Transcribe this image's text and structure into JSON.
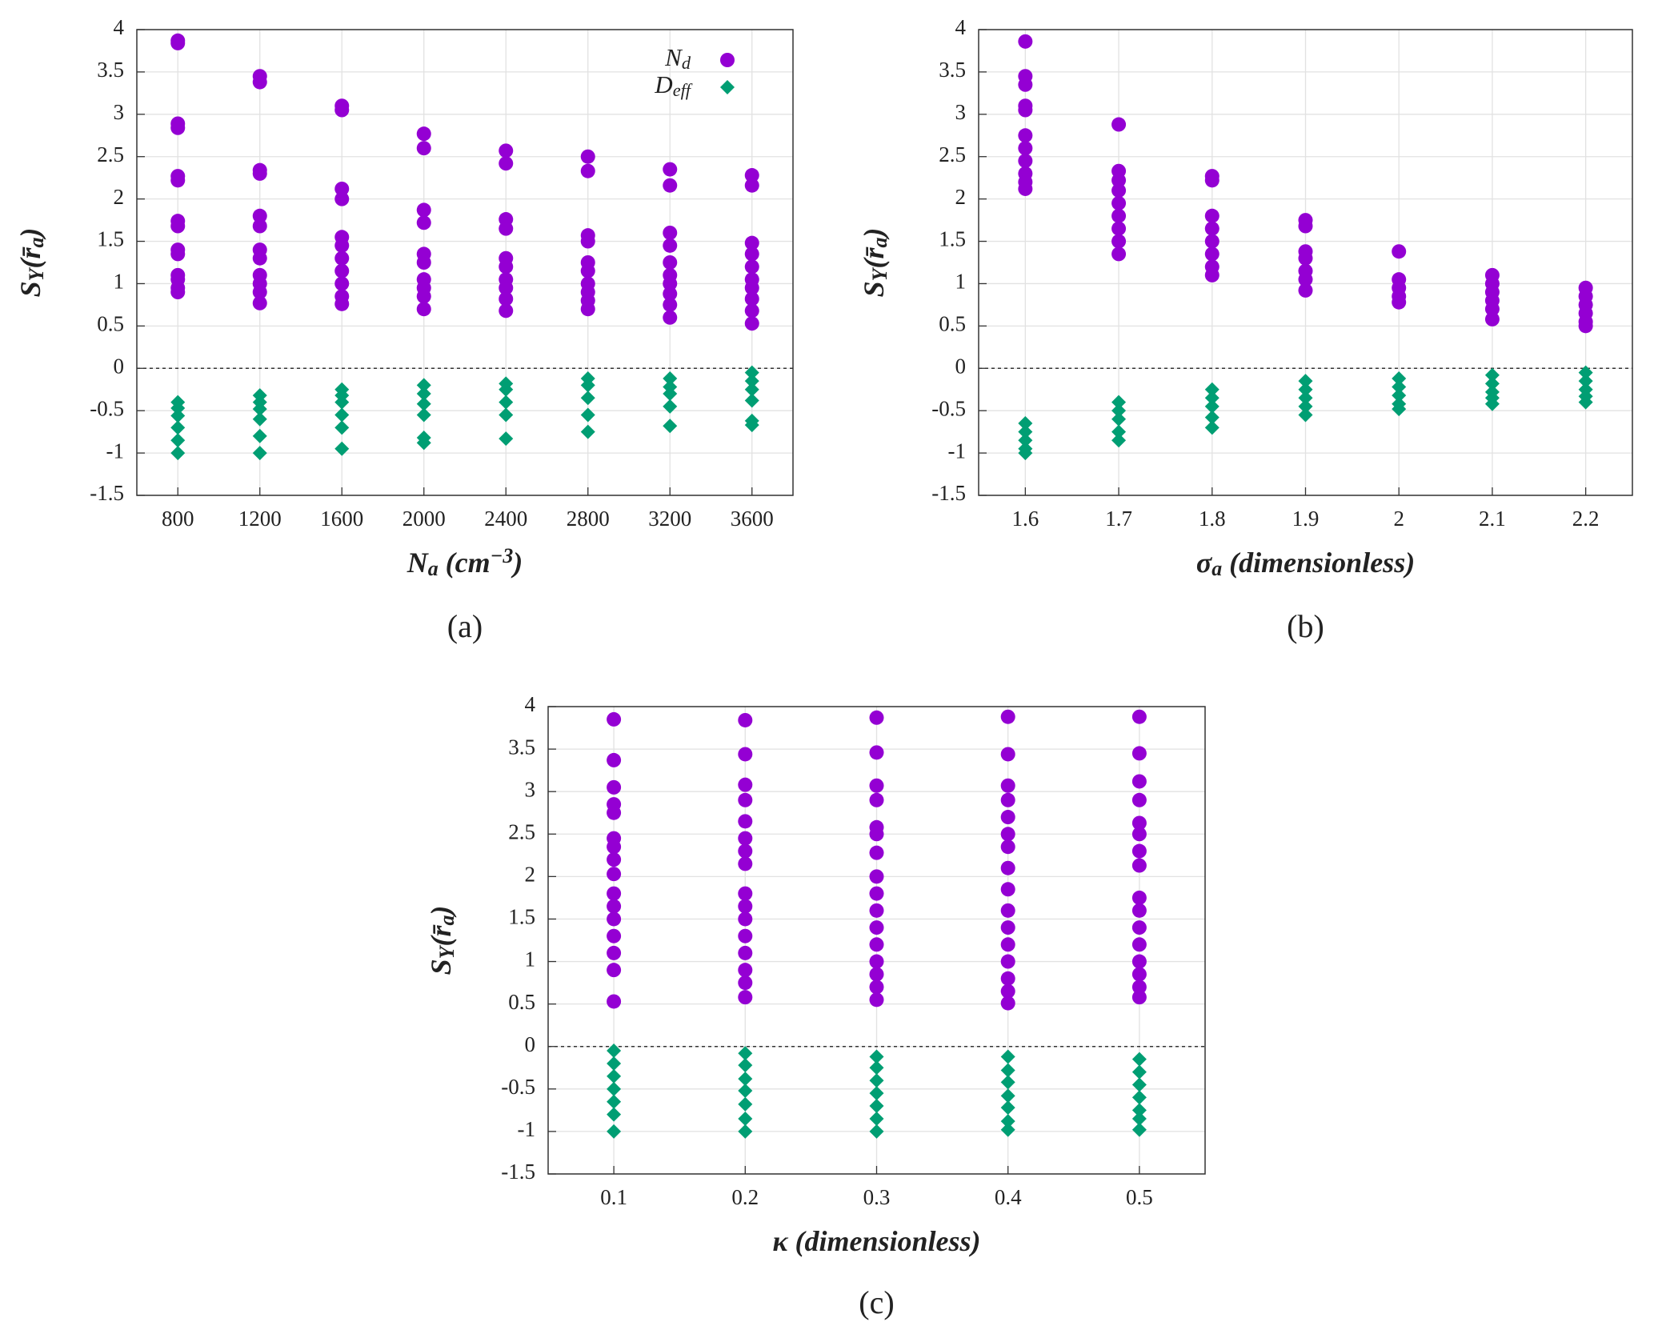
{
  "chart_data": [
    {
      "type": "scatter",
      "caption": "(a)",
      "x_label": [
        {
          "text": "N"
        },
        {
          "text": "a",
          "sub": true
        },
        {
          "text": " (cm"
        },
        {
          "text": "−3",
          "sup": true
        },
        {
          "text": ")"
        }
      ],
      "y_label": [
        {
          "text": "S"
        },
        {
          "text": "Y",
          "sub": true
        },
        {
          "text": "(r̄"
        },
        {
          "text": "a",
          "sub": true
        },
        {
          "text": ")"
        }
      ],
      "xlim": [
        600,
        3800
      ],
      "xticks": [
        800,
        1200,
        1600,
        2000,
        2400,
        2800,
        3200,
        3600
      ],
      "ylim": [
        -1.5,
        4
      ],
      "yticks": [
        -1.5,
        -1,
        -0.5,
        0,
        0.5,
        1,
        1.5,
        2,
        2.5,
        3,
        3.5,
        4
      ],
      "grid": true,
      "hline": 0,
      "legend": "top-right",
      "series": [
        {
          "name": [
            {
              "text": "N"
            },
            {
              "text": "d",
              "sub": true
            }
          ],
          "marker": "circle",
          "color": "#9400d3",
          "x": [
            800,
            800,
            800,
            800,
            800,
            800,
            800,
            800,
            800,
            800,
            800,
            800,
            800,
            800,
            1200,
            1200,
            1200,
            1200,
            1200,
            1200,
            1200,
            1200,
            1200,
            1200,
            1200,
            1200,
            1600,
            1600,
            1600,
            1600,
            1600,
            1600,
            1600,
            1600,
            1600,
            1600,
            1600,
            2000,
            2000,
            2000,
            2000,
            2000,
            2000,
            2000,
            2000,
            2000,
            2000,
            2400,
            2400,
            2400,
            2400,
            2400,
            2400,
            2400,
            2400,
            2400,
            2400,
            2800,
            2800,
            2800,
            2800,
            2800,
            2800,
            2800,
            2800,
            2800,
            2800,
            3200,
            3200,
            3200,
            3200,
            3200,
            3200,
            3200,
            3200,
            3200,
            3200,
            3600,
            3600,
            3600,
            3600,
            3600,
            3600,
            3600,
            3600,
            3600,
            3600
          ],
          "values": [
            3.87,
            3.84,
            2.89,
            2.84,
            2.27,
            2.22,
            1.74,
            1.68,
            1.4,
            1.35,
            1.1,
            1.05,
            0.95,
            0.9,
            3.45,
            3.38,
            2.34,
            2.3,
            1.8,
            1.68,
            1.4,
            1.3,
            1.1,
            1.0,
            0.9,
            0.77,
            3.1,
            3.05,
            2.12,
            2.0,
            1.55,
            1.45,
            1.3,
            1.15,
            1.0,
            0.85,
            0.76,
            2.77,
            2.6,
            1.87,
            1.72,
            1.35,
            1.25,
            1.05,
            0.95,
            0.85,
            0.7,
            2.57,
            2.42,
            1.76,
            1.65,
            1.3,
            1.2,
            1.05,
            0.95,
            0.82,
            0.68,
            2.5,
            2.33,
            1.57,
            1.5,
            1.25,
            1.15,
            1.0,
            0.9,
            0.8,
            0.7,
            2.35,
            2.16,
            1.6,
            1.45,
            1.25,
            1.1,
            1.0,
            0.88,
            0.75,
            0.6,
            2.28,
            2.16,
            1.48,
            1.35,
            1.2,
            1.05,
            0.95,
            0.82,
            0.68,
            0.53
          ]
        },
        {
          "name": [
            {
              "text": "D"
            },
            {
              "text": "eff",
              "sub": true
            }
          ],
          "marker": "diamond",
          "color": "#009e73",
          "x": [
            800,
            800,
            800,
            800,
            800,
            800,
            1200,
            1200,
            1200,
            1200,
            1200,
            1200,
            1600,
            1600,
            1600,
            1600,
            1600,
            1600,
            2000,
            2000,
            2000,
            2000,
            2000,
            2000,
            2400,
            2400,
            2400,
            2400,
            2400,
            2800,
            2800,
            2800,
            2800,
            2800,
            3200,
            3200,
            3200,
            3200,
            3200,
            3600,
            3600,
            3600,
            3600,
            3600,
            3600
          ],
          "values": [
            -0.4,
            -0.47,
            -0.56,
            -0.7,
            -0.85,
            -1.0,
            -0.32,
            -0.4,
            -0.48,
            -0.6,
            -0.8,
            -1.0,
            -0.25,
            -0.32,
            -0.4,
            -0.55,
            -0.7,
            -0.95,
            -0.2,
            -0.3,
            -0.42,
            -0.55,
            -0.82,
            -0.88,
            -0.18,
            -0.25,
            -0.4,
            -0.55,
            -0.83,
            -0.12,
            -0.2,
            -0.35,
            -0.55,
            -0.75,
            -0.12,
            -0.22,
            -0.3,
            -0.45,
            -0.68,
            -0.05,
            -0.15,
            -0.25,
            -0.38,
            -0.62,
            -0.67
          ]
        }
      ]
    },
    {
      "type": "scatter",
      "caption": "(b)",
      "x_label": [
        {
          "text": "σ"
        },
        {
          "text": "a",
          "sub": true
        },
        {
          "text": " (dimensionless)"
        }
      ],
      "y_label": [
        {
          "text": "S"
        },
        {
          "text": "Y",
          "sub": true
        },
        {
          "text": "(r̄"
        },
        {
          "text": "a",
          "sub": true
        },
        {
          "text": ")"
        }
      ],
      "xlim": [
        1.55,
        2.25
      ],
      "xticks": [
        1.6,
        1.7,
        1.8,
        1.9,
        2,
        2.1,
        2.2
      ],
      "ylim": [
        -1.5,
        4
      ],
      "yticks": [
        -1.5,
        -1,
        -0.5,
        0,
        0.5,
        1,
        1.5,
        2,
        2.5,
        3,
        3.5,
        4
      ],
      "grid": true,
      "hline": 0,
      "series": [
        {
          "marker": "circle",
          "color": "#9400d3",
          "x": [
            1.6,
            1.6,
            1.6,
            1.6,
            1.6,
            1.6,
            1.6,
            1.6,
            1.6,
            1.6,
            1.6,
            1.7,
            1.7,
            1.7,
            1.7,
            1.7,
            1.7,
            1.7,
            1.7,
            1.7,
            1.8,
            1.8,
            1.8,
            1.8,
            1.8,
            1.8,
            1.8,
            1.8,
            1.9,
            1.9,
            1.9,
            1.9,
            1.9,
            1.9,
            1.9,
            2,
            2,
            2,
            2,
            2,
            2.1,
            2.1,
            2.1,
            2.1,
            2.1,
            2.1,
            2.2,
            2.2,
            2.2,
            2.2,
            2.2,
            2.2
          ],
          "values": [
            3.86,
            3.45,
            3.35,
            3.1,
            3.05,
            2.75,
            2.6,
            2.45,
            2.3,
            2.2,
            2.12,
            2.88,
            2.33,
            2.22,
            2.1,
            1.95,
            1.8,
            1.65,
            1.5,
            1.35,
            2.27,
            2.22,
            1.8,
            1.65,
            1.5,
            1.35,
            1.2,
            1.1,
            1.75,
            1.68,
            1.38,
            1.3,
            1.15,
            1.05,
            0.92,
            1.38,
            1.05,
            0.95,
            0.85,
            0.78,
            1.1,
            1.0,
            0.9,
            0.8,
            0.7,
            0.58,
            0.95,
            0.85,
            0.75,
            0.65,
            0.55,
            0.5
          ]
        },
        {
          "marker": "diamond",
          "color": "#009e73",
          "x": [
            1.6,
            1.6,
            1.6,
            1.6,
            1.6,
            1.7,
            1.7,
            1.7,
            1.7,
            1.7,
            1.8,
            1.8,
            1.8,
            1.8,
            1.8,
            1.9,
            1.9,
            1.9,
            1.9,
            1.9,
            2,
            2,
            2,
            2,
            2,
            2.1,
            2.1,
            2.1,
            2.1,
            2.1,
            2.2,
            2.2,
            2.2,
            2.2,
            2.2
          ],
          "values": [
            -0.65,
            -0.75,
            -0.85,
            -0.95,
            -1.0,
            -0.4,
            -0.5,
            -0.6,
            -0.75,
            -0.85,
            -0.25,
            -0.35,
            -0.45,
            -0.58,
            -0.7,
            -0.15,
            -0.25,
            -0.35,
            -0.45,
            -0.55,
            -0.12,
            -0.22,
            -0.32,
            -0.42,
            -0.48,
            -0.08,
            -0.18,
            -0.28,
            -0.35,
            -0.42,
            -0.05,
            -0.15,
            -0.25,
            -0.33,
            -0.4
          ]
        }
      ]
    },
    {
      "type": "scatter",
      "caption": "(c)",
      "x_label": [
        {
          "text": "κ (dimensionless)"
        }
      ],
      "y_label": [
        {
          "text": "S"
        },
        {
          "text": "Y",
          "sub": true
        },
        {
          "text": "(r̄"
        },
        {
          "text": "a",
          "sub": true
        },
        {
          "text": ")"
        }
      ],
      "xlim": [
        0.05,
        0.55
      ],
      "xticks": [
        0.1,
        0.2,
        0.3,
        0.4,
        0.5
      ],
      "ylim": [
        -1.5,
        4
      ],
      "yticks": [
        -1.5,
        -1,
        -0.5,
        0,
        0.5,
        1,
        1.5,
        2,
        2.5,
        3,
        3.5,
        4
      ],
      "grid": true,
      "hline": 0,
      "series": [
        {
          "marker": "circle",
          "color": "#9400d3",
          "x": [
            0.1,
            0.1,
            0.1,
            0.1,
            0.1,
            0.1,
            0.1,
            0.1,
            0.1,
            0.1,
            0.1,
            0.1,
            0.1,
            0.1,
            0.1,
            0.1,
            0.2,
            0.2,
            0.2,
            0.2,
            0.2,
            0.2,
            0.2,
            0.2,
            0.2,
            0.2,
            0.2,
            0.2,
            0.2,
            0.2,
            0.2,
            0.2,
            0.3,
            0.3,
            0.3,
            0.3,
            0.3,
            0.3,
            0.3,
            0.3,
            0.3,
            0.3,
            0.3,
            0.3,
            0.3,
            0.3,
            0.3,
            0.3,
            0.4,
            0.4,
            0.4,
            0.4,
            0.4,
            0.4,
            0.4,
            0.4,
            0.4,
            0.4,
            0.4,
            0.4,
            0.4,
            0.4,
            0.4,
            0.4,
            0.5,
            0.5,
            0.5,
            0.5,
            0.5,
            0.5,
            0.5,
            0.5,
            0.5,
            0.5,
            0.5,
            0.5,
            0.5,
            0.5,
            0.5,
            0.5
          ],
          "values": [
            3.85,
            3.37,
            3.05,
            2.85,
            2.75,
            2.45,
            2.35,
            2.2,
            2.03,
            1.8,
            1.65,
            1.5,
            1.3,
            1.1,
            0.9,
            0.53,
            3.84,
            3.44,
            3.08,
            2.9,
            2.65,
            2.45,
            2.3,
            2.15,
            1.8,
            1.65,
            1.5,
            1.3,
            1.1,
            0.9,
            0.75,
            0.58,
            3.87,
            3.46,
            3.07,
            2.9,
            2.58,
            2.5,
            2.28,
            2.0,
            1.8,
            1.6,
            1.4,
            1.2,
            1.0,
            0.85,
            0.7,
            0.55,
            3.88,
            3.44,
            3.07,
            2.9,
            2.7,
            2.5,
            2.35,
            2.1,
            1.85,
            1.6,
            1.4,
            1.2,
            1.0,
            0.8,
            0.65,
            0.51,
            3.88,
            3.45,
            3.12,
            2.9,
            2.63,
            2.5,
            2.3,
            2.13,
            1.75,
            1.6,
            1.4,
            1.2,
            1.0,
            0.85,
            0.7,
            0.58
          ]
        },
        {
          "marker": "diamond",
          "color": "#009e73",
          "x": [
            0.1,
            0.1,
            0.1,
            0.1,
            0.1,
            0.1,
            0.1,
            0.2,
            0.2,
            0.2,
            0.2,
            0.2,
            0.2,
            0.2,
            0.3,
            0.3,
            0.3,
            0.3,
            0.3,
            0.3,
            0.3,
            0.4,
            0.4,
            0.4,
            0.4,
            0.4,
            0.4,
            0.4,
            0.5,
            0.5,
            0.5,
            0.5,
            0.5,
            0.5,
            0.5
          ],
          "values": [
            -0.05,
            -0.2,
            -0.35,
            -0.5,
            -0.65,
            -0.8,
            -1.0,
            -0.08,
            -0.22,
            -0.38,
            -0.52,
            -0.68,
            -0.85,
            -1.0,
            -0.12,
            -0.25,
            -0.4,
            -0.55,
            -0.7,
            -0.85,
            -1.0,
            -0.12,
            -0.28,
            -0.42,
            -0.58,
            -0.72,
            -0.88,
            -0.98,
            -0.15,
            -0.3,
            -0.45,
            -0.6,
            -0.75,
            -0.85,
            -0.98
          ]
        }
      ]
    }
  ]
}
